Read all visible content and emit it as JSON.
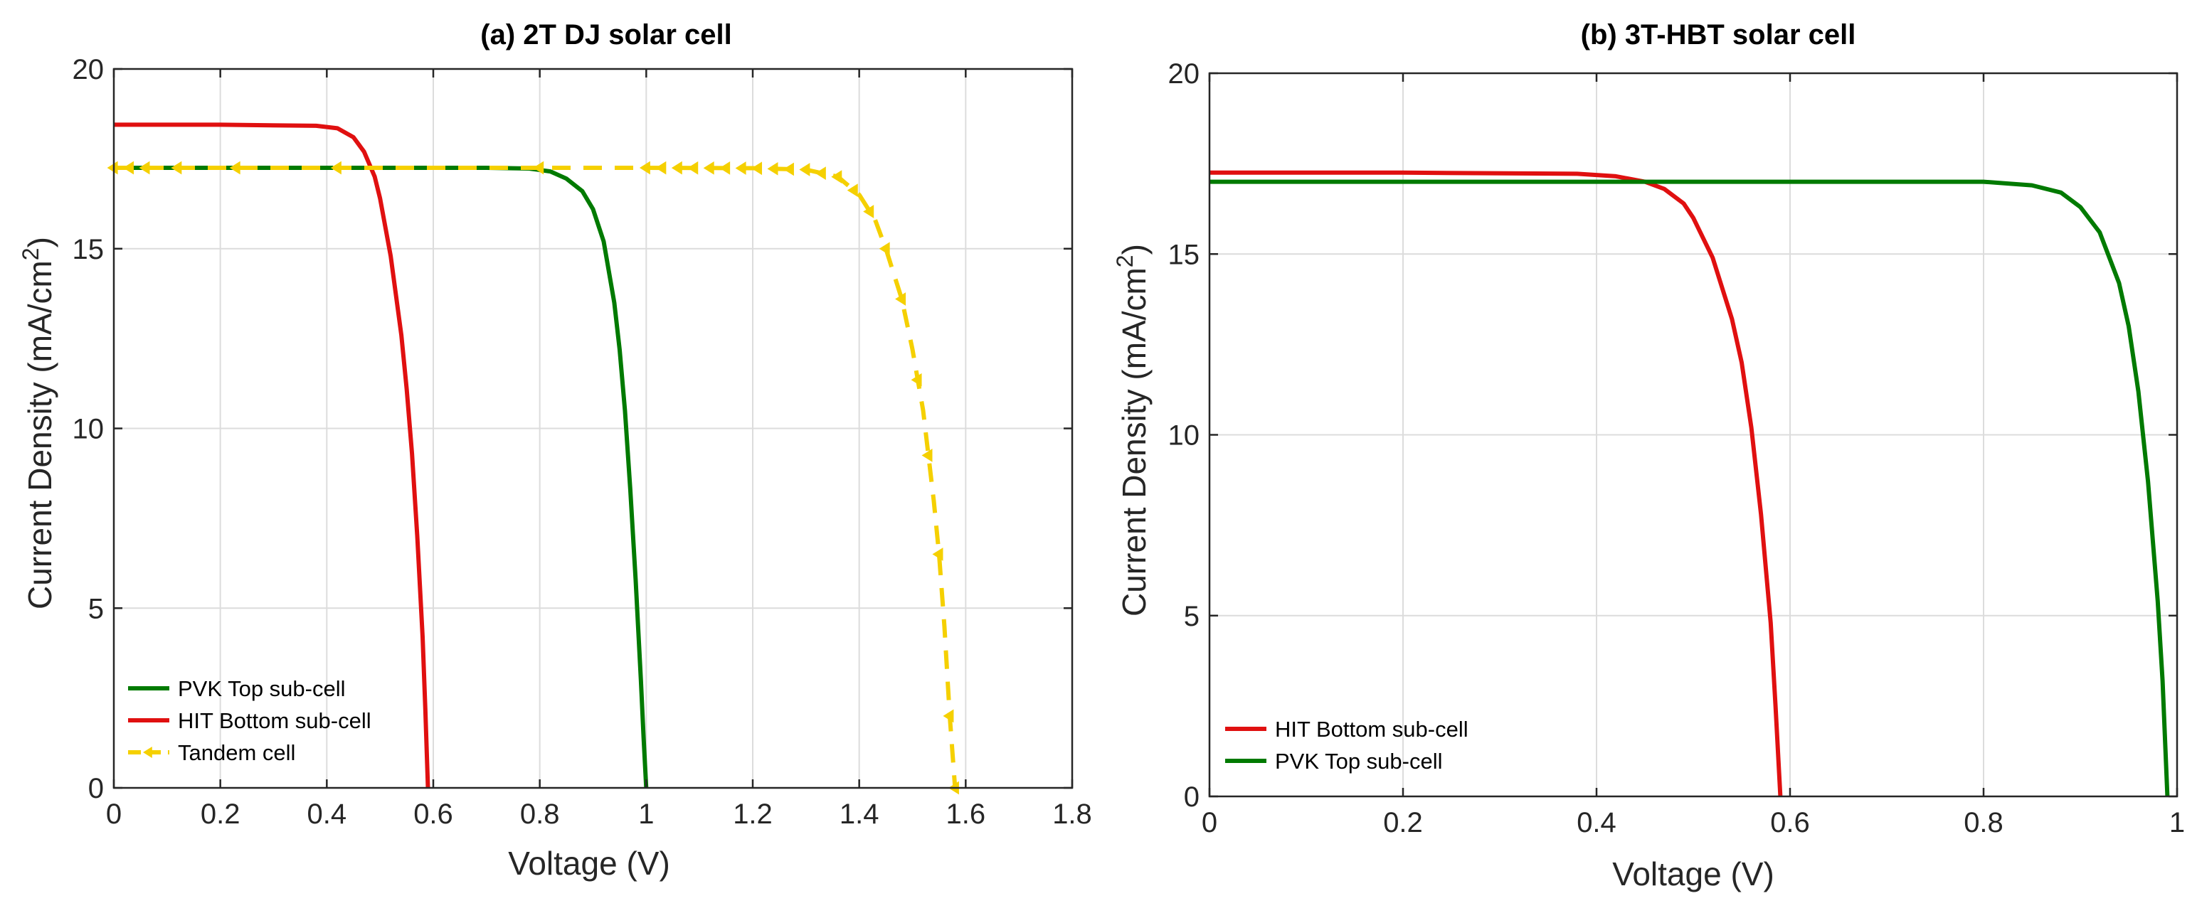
{
  "chart_data": [
    {
      "type": "line",
      "title": "(a)  2T DJ solar cell",
      "xlabel": "Voltage (V)",
      "ylabel_main": "Current Density (mA/cm",
      "ylabel_sup": "2",
      "ylabel_close": ")",
      "xlim": [
        0,
        1.8
      ],
      "ylim": [
        0,
        20
      ],
      "xticks": [
        0,
        0.2,
        0.4,
        0.6,
        0.8,
        1,
        1.2,
        1.4,
        1.6,
        1.8
      ],
      "xtick_labels": [
        "0",
        "0.2",
        "0.4",
        "0.6",
        "0.8",
        "1",
        "1.2",
        "1.4",
        "1.6",
        "1.8"
      ],
      "yticks": [
        0,
        5,
        10,
        15,
        20
      ],
      "ytick_labels": [
        "0",
        "5",
        "10",
        "15",
        "20"
      ],
      "grid": true,
      "legend_position": "bottom-left",
      "series": [
        {
          "name": "PVK Top sub-cell",
          "color": "#007a00",
          "style": "solid",
          "marker": "none",
          "x": [
            0,
            0.2,
            0.4,
            0.6,
            0.7,
            0.78,
            0.82,
            0.85,
            0.88,
            0.9,
            0.92,
            0.94,
            0.95,
            0.96,
            0.97,
            0.98,
            0.99,
            0.995,
            1.0
          ],
          "y": [
            17.25,
            17.25,
            17.25,
            17.25,
            17.25,
            17.23,
            17.15,
            16.95,
            16.6,
            16.1,
            15.2,
            13.5,
            12.2,
            10.5,
            8.3,
            5.8,
            3.0,
            1.4,
            0
          ]
        },
        {
          "name": "HIT Bottom sub-cell",
          "color": "#e01010",
          "style": "solid",
          "marker": "none",
          "x": [
            0,
            0.2,
            0.38,
            0.42,
            0.45,
            0.47,
            0.49,
            0.5,
            0.52,
            0.54,
            0.55,
            0.56,
            0.57,
            0.58,
            0.585,
            0.59
          ],
          "y": [
            18.45,
            18.45,
            18.42,
            18.35,
            18.1,
            17.7,
            17.0,
            16.4,
            14.8,
            12.6,
            11.1,
            9.3,
            7.0,
            4.2,
            2.2,
            0
          ]
        },
        {
          "name": "Tandem cell",
          "color": "#f5d000",
          "style": "dashed",
          "marker": "triangle-left",
          "x": [
            0,
            0.4,
            0.8,
            1.0,
            1.2,
            1.3,
            1.36,
            1.4,
            1.43,
            1.45,
            1.48,
            1.5,
            1.52,
            1.54,
            1.55,
            1.56,
            1.57,
            1.58
          ],
          "y": [
            17.25,
            17.25,
            17.25,
            17.25,
            17.24,
            17.2,
            17.0,
            16.5,
            15.8,
            15.0,
            13.6,
            12.2,
            10.5,
            8.0,
            6.5,
            4.5,
            2.0,
            0
          ],
          "marker_x": [
            0,
            0.03,
            0.06,
            0.12,
            0.23,
            0.42,
            0.8,
            1.0,
            1.03,
            1.06,
            1.09,
            1.12,
            1.15,
            1.18,
            1.21,
            1.24,
            1.27,
            1.3,
            1.33,
            1.36,
            1.39,
            1.42,
            1.45,
            1.48,
            1.51,
            1.53,
            1.55,
            1.57,
            1.58
          ]
        }
      ]
    },
    {
      "type": "line",
      "title": "(b)  3T-HBT solar cell",
      "xlabel": "Voltage (V)",
      "ylabel_main": "Current Density (mA/cm",
      "ylabel_sup": "2",
      "ylabel_close": ")",
      "xlim": [
        0,
        1
      ],
      "ylim": [
        0,
        20
      ],
      "xticks": [
        0,
        0.2,
        0.4,
        0.6,
        0.8,
        1
      ],
      "xtick_labels": [
        "0",
        "0.2",
        "0.4",
        "0.6",
        "0.8",
        "1"
      ],
      "yticks": [
        0,
        5,
        10,
        15,
        20
      ],
      "ytick_labels": [
        "0",
        "5",
        "10",
        "15",
        "20"
      ],
      "grid": true,
      "legend_position": "bottom-left",
      "series": [
        {
          "name": "HIT Bottom sub-cell",
          "color": "#e01010",
          "style": "solid",
          "marker": "none",
          "x": [
            0,
            0.2,
            0.38,
            0.42,
            0.45,
            0.47,
            0.49,
            0.5,
            0.52,
            0.54,
            0.55,
            0.56,
            0.57,
            0.58,
            0.585,
            0.59
          ],
          "y": [
            17.25,
            17.25,
            17.22,
            17.15,
            17.0,
            16.8,
            16.4,
            16.0,
            14.9,
            13.2,
            12.0,
            10.2,
            7.8,
            4.8,
            2.5,
            0
          ]
        },
        {
          "name": "PVK Top sub-cell",
          "color": "#007a00",
          "style": "solid",
          "marker": "none",
          "x": [
            0,
            0.2,
            0.4,
            0.6,
            0.8,
            0.85,
            0.88,
            0.9,
            0.92,
            0.94,
            0.95,
            0.96,
            0.97,
            0.98,
            0.985,
            0.99
          ],
          "y": [
            17.0,
            17.0,
            17.0,
            17.0,
            17.0,
            16.9,
            16.7,
            16.3,
            15.6,
            14.2,
            13.0,
            11.2,
            8.7,
            5.4,
            3.2,
            0
          ]
        }
      ]
    }
  ]
}
